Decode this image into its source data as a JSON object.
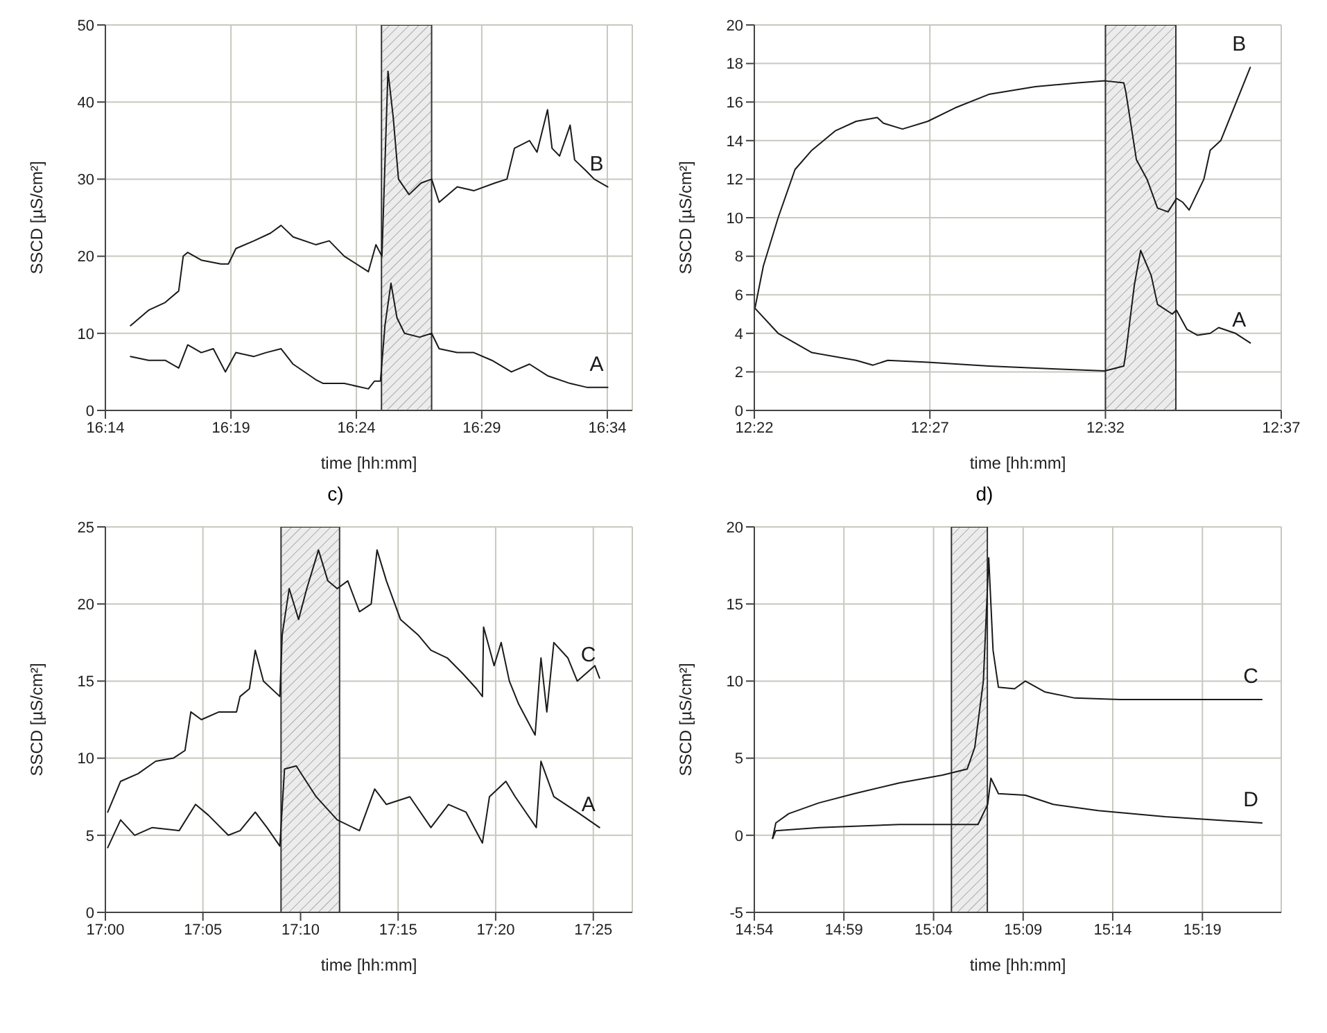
{
  "chart_data": [
    {
      "type": "line",
      "xlabel": "time [hh:mm]",
      "ylabel": "SSCD [µS/cm²]",
      "xlim": [
        16.2333,
        16.5833
      ],
      "xticks": [
        {
          "value": 16.2333,
          "label": "16:14"
        },
        {
          "value": 16.3167,
          "label": "16:19"
        },
        {
          "value": 16.4,
          "label": "16:24"
        },
        {
          "value": 16.4833,
          "label": "16:29"
        },
        {
          "value": 16.5667,
          "label": "16:34"
        }
      ],
      "ylim": [
        0,
        50
      ],
      "yticks": [
        0,
        10,
        20,
        30,
        40,
        50
      ],
      "grid": true,
      "bands": [
        {
          "axis": "x",
          "from": 16.4167,
          "to": 16.45
        }
      ],
      "series": [
        {
          "name": "B",
          "color": "#1a1a1a",
          "x": [
            16.25,
            16.262,
            16.273,
            16.282,
            16.285,
            16.288,
            16.297,
            16.31,
            16.315,
            16.32,
            16.332,
            16.343,
            16.35,
            16.358,
            16.373,
            16.382,
            16.392,
            16.408,
            16.413,
            16.417,
            16.421,
            16.4245,
            16.428,
            16.435,
            16.443,
            16.45,
            16.455,
            16.467,
            16.478,
            16.492,
            16.5,
            16.505,
            16.515,
            16.52,
            16.527,
            16.53,
            16.535,
            16.542,
            16.545,
            16.553,
            16.558,
            16.567
          ],
          "values": [
            11,
            13,
            14,
            15.5,
            20,
            20.5,
            19.5,
            19,
            19,
            21,
            22,
            23,
            24,
            22.5,
            21.5,
            22,
            20,
            18,
            21.5,
            20,
            44,
            38,
            30,
            28,
            29.5,
            30,
            27,
            29,
            28.5,
            29.5,
            30,
            34,
            35,
            33.5,
            39,
            34,
            33,
            37,
            32.5,
            31,
            30,
            29
          ]
        },
        {
          "name": "A",
          "color": "#1a1a1a",
          "x": [
            16.25,
            16.262,
            16.273,
            16.282,
            16.288,
            16.297,
            16.305,
            16.313,
            16.32,
            16.332,
            16.34,
            16.35,
            16.358,
            16.373,
            16.378,
            16.392,
            16.408,
            16.412,
            16.416,
            16.419,
            16.423,
            16.427,
            16.432,
            16.442,
            16.45,
            16.455,
            16.467,
            16.478,
            16.49,
            16.503,
            16.515,
            16.527,
            16.542,
            16.553,
            16.567
          ],
          "values": [
            7,
            6.5,
            6.5,
            5.5,
            8.5,
            7.5,
            8,
            5,
            7.5,
            7,
            7.5,
            8,
            6,
            4,
            3.5,
            3.5,
            2.8,
            3.8,
            3.8,
            11,
            16.5,
            12,
            10,
            9.5,
            10,
            8,
            7.5,
            7.5,
            6.5,
            5,
            6,
            4.5,
            3.5,
            3,
            3
          ]
        }
      ]
    },
    {
      "type": "line",
      "xlabel": "time [hh:mm]",
      "ylabel": "SSCD [µS/cm²]",
      "xlim": [
        12.3667,
        12.6167
      ],
      "xticks": [
        {
          "value": 12.3667,
          "label": "12:22"
        },
        {
          "value": 12.45,
          "label": "12:27"
        },
        {
          "value": 12.5333,
          "label": "12:32"
        },
        {
          "value": 12.6167,
          "label": "12:37"
        }
      ],
      "ylim": [
        0,
        20
      ],
      "yticks": [
        0,
        2,
        4,
        6,
        8,
        10,
        12,
        14,
        16,
        18,
        20
      ],
      "grid": true,
      "bands": [
        {
          "axis": "x",
          "from": 12.5333,
          "to": 12.5667
        }
      ],
      "series": [
        {
          "name": "B",
          "color": "#1a1a1a",
          "x": [
            12.367,
            12.371,
            12.378,
            12.386,
            12.394,
            12.405,
            12.415,
            12.425,
            12.428,
            12.437,
            12.449,
            12.462,
            12.478,
            12.5,
            12.52,
            12.533,
            12.542,
            12.543,
            12.548,
            12.553,
            12.558,
            12.563,
            12.567,
            12.57,
            12.573,
            12.58,
            12.583,
            12.588,
            12.602
          ],
          "values": [
            5.3,
            7.5,
            10,
            12.5,
            13.5,
            14.5,
            15,
            15.2,
            14.9,
            14.6,
            15,
            15.7,
            16.4,
            16.8,
            17,
            17.1,
            17,
            16.5,
            13,
            12,
            10.5,
            10.3,
            11,
            10.8,
            10.4,
            12,
            13.5,
            14,
            17.8
          ]
        },
        {
          "name": "A",
          "color": "#1a1a1a",
          "x": [
            12.367,
            12.378,
            12.394,
            12.415,
            12.423,
            12.43,
            12.449,
            12.478,
            12.51,
            12.533,
            12.542,
            12.543,
            12.547,
            12.55,
            12.555,
            12.558,
            12.565,
            12.567,
            12.572,
            12.577,
            12.583,
            12.587,
            12.595,
            12.602
          ],
          "values": [
            5.3,
            4,
            3,
            2.6,
            2.35,
            2.6,
            2.5,
            2.3,
            2.15,
            2.05,
            2.3,
            3,
            6.5,
            8.3,
            7,
            5.5,
            5,
            5.2,
            4.2,
            3.9,
            4,
            4.3,
            4,
            3.5
          ]
        }
      ]
    },
    {
      "type": "line",
      "title": "c)",
      "xlabel": "time [hh:mm]",
      "ylabel": "SSCD [µS/cm²]",
      "xlim": [
        17,
        17.45
      ],
      "xticks": [
        {
          "value": 17,
          "label": "17:00"
        },
        {
          "value": 17.0833,
          "label": "17:05"
        },
        {
          "value": 17.1667,
          "label": "17:10"
        },
        {
          "value": 17.25,
          "label": "17:15"
        },
        {
          "value": 17.3333,
          "label": "17:20"
        },
        {
          "value": 17.4167,
          "label": "17:25"
        }
      ],
      "ylim": [
        0,
        25
      ],
      "yticks": [
        0,
        5,
        10,
        15,
        20,
        25
      ],
      "grid": true,
      "bands": [
        {
          "axis": "x",
          "from": 17.15,
          "to": 17.2
        }
      ],
      "series": [
        {
          "name": "C",
          "color": "#1a1a1a",
          "x": [
            17.002,
            17.013,
            17.028,
            17.043,
            17.058,
            17.068,
            17.073,
            17.082,
            17.097,
            17.112,
            17.115,
            17.123,
            17.128,
            17.135,
            17.149,
            17.151,
            17.157,
            17.165,
            17.172,
            17.182,
            17.19,
            17.198,
            17.207,
            17.217,
            17.227,
            17.232,
            17.24,
            17.252,
            17.267,
            17.278,
            17.292,
            17.305,
            17.317,
            17.322,
            17.323,
            17.332,
            17.338,
            17.345,
            17.353,
            17.367,
            17.372,
            17.377,
            17.383,
            17.395,
            17.403,
            17.418,
            17.422
          ],
          "values": [
            6.5,
            8.5,
            9,
            9.8,
            10,
            10.5,
            13,
            12.5,
            13,
            13,
            14,
            14.5,
            17,
            15,
            14,
            18,
            21,
            19,
            21,
            23.5,
            21.5,
            21,
            21.5,
            19.5,
            20,
            23.5,
            21.5,
            19,
            18,
            17,
            16.5,
            15.5,
            14.5,
            14,
            18.5,
            16,
            17.5,
            15,
            13.5,
            11.5,
            16.5,
            13,
            17.5,
            16.5,
            15,
            16,
            15.2
          ]
        },
        {
          "name": "A",
          "color": "#1a1a1a",
          "x": [
            17.002,
            17.013,
            17.025,
            17.04,
            17.063,
            17.077,
            17.088,
            17.105,
            17.115,
            17.128,
            17.138,
            17.149,
            17.153,
            17.163,
            17.18,
            17.198,
            17.217,
            17.23,
            17.24,
            17.26,
            17.278,
            17.293,
            17.308,
            17.322,
            17.328,
            17.342,
            17.35,
            17.368,
            17.372,
            17.383,
            17.403,
            17.422
          ],
          "values": [
            4.2,
            6,
            5,
            5.5,
            5.3,
            7,
            6.3,
            5,
            5.3,
            6.5,
            5.5,
            4.3,
            9.3,
            9.5,
            7.5,
            6,
            5.3,
            8,
            7,
            7.5,
            5.5,
            7,
            6.5,
            4.5,
            7.5,
            8.5,
            7.5,
            5.5,
            9.8,
            7.5,
            6.5,
            5.5
          ]
        }
      ]
    },
    {
      "type": "line",
      "title": "d)",
      "xlabel": "time [hh:mm]",
      "ylabel": "SSCD [µS/cm²]",
      "xlim": [
        14.9,
        15.39
      ],
      "xticks": [
        {
          "value": 14.9,
          "label": "14:54"
        },
        {
          "value": 14.9833,
          "label": "14:59"
        },
        {
          "value": 15.0667,
          "label": "15:04"
        },
        {
          "value": 15.15,
          "label": "15:09"
        },
        {
          "value": 15.2333,
          "label": "15:14"
        },
        {
          "value": 15.3167,
          "label": "15:19"
        }
      ],
      "ylim": [
        -5,
        20
      ],
      "yticks": [
        -5,
        0,
        5,
        10,
        15,
        20
      ],
      "grid": true,
      "bands": [
        {
          "axis": "x",
          "from": 15.0833,
          "to": 15.1167
        }
      ],
      "series": [
        {
          "name": "C",
          "color": "#1a1a1a",
          "x": [
            14.917,
            14.92,
            14.932,
            14.96,
            14.993,
            15.035,
            15.075,
            15.098,
            15.105,
            15.113,
            15.118,
            15.122,
            15.127,
            15.142,
            15.152,
            15.17,
            15.198,
            15.24,
            15.372
          ],
          "values": [
            -0.2,
            0.8,
            1.4,
            2.1,
            2.7,
            3.4,
            3.9,
            4.3,
            5.7,
            10,
            18,
            12,
            9.6,
            9.5,
            10,
            9.3,
            8.9,
            8.8,
            8.8
          ]
        },
        {
          "name": "D",
          "color": "#1a1a1a",
          "x": [
            14.917,
            14.92,
            14.96,
            15.035,
            15.108,
            15.117,
            15.12,
            15.127,
            15.152,
            15.178,
            15.22,
            15.282,
            15.372
          ],
          "values": [
            -0.2,
            0.3,
            0.5,
            0.7,
            0.7,
            2,
            3.7,
            2.7,
            2.6,
            2,
            1.6,
            1.2,
            0.8
          ]
        }
      ]
    }
  ]
}
